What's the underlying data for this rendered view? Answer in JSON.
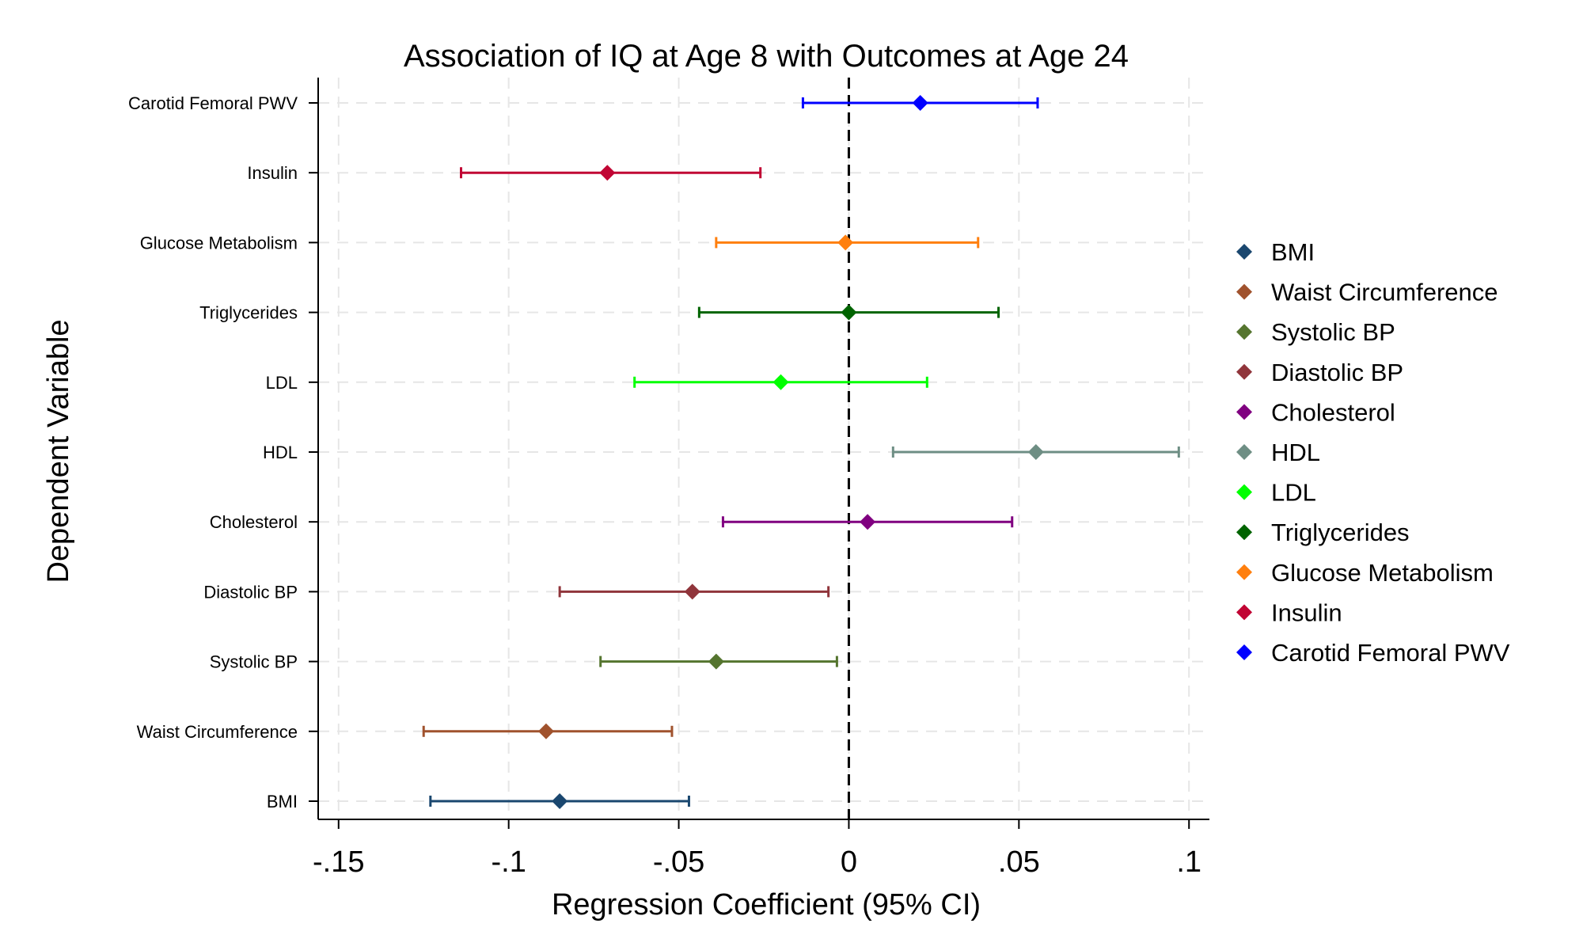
{
  "chart_data": {
    "type": "scatter",
    "title": "Association of IQ at Age 8 with Outcomes at Age 24",
    "xlabel": "Regression Coefficient (95% CI)",
    "ylabel": "Dependent Variable",
    "xlim": [
      -0.156,
      0.106
    ],
    "xticks": [
      -0.15,
      -0.1,
      -0.05,
      0,
      0.05,
      0.1
    ],
    "xtick_labels": [
      "-.15",
      "-.1",
      "-.05",
      "0",
      ".05",
      ".1"
    ],
    "reference_line": {
      "x": 0,
      "style": "dashed"
    },
    "grid": true,
    "legend_position": "right",
    "series": [
      {
        "name": "BMI",
        "estimate": -0.085,
        "ci_low": -0.123,
        "ci_high": -0.047,
        "color": "#1a476f"
      },
      {
        "name": "Waist Circumference",
        "estimate": -0.089,
        "ci_low": -0.125,
        "ci_high": -0.052,
        "color": "#a0522d"
      },
      {
        "name": "Systolic BP",
        "estimate": -0.039,
        "ci_low": -0.073,
        "ci_high": -0.0035,
        "color": "#55752f"
      },
      {
        "name": "Diastolic BP",
        "estimate": -0.046,
        "ci_low": -0.085,
        "ci_high": -0.006,
        "color": "#90353b"
      },
      {
        "name": "Cholesterol",
        "estimate": 0.0055,
        "ci_low": -0.037,
        "ci_high": 0.048,
        "color": "#800080"
      },
      {
        "name": "HDL",
        "estimate": 0.055,
        "ci_low": 0.013,
        "ci_high": 0.097,
        "color": "#6e8e84"
      },
      {
        "name": "LDL",
        "estimate": -0.02,
        "ci_low": -0.063,
        "ci_high": 0.023,
        "color": "#00ff00"
      },
      {
        "name": "Triglycerides",
        "estimate": 0.0,
        "ci_low": -0.044,
        "ci_high": 0.044,
        "color": "#006400"
      },
      {
        "name": "Glucose Metabolism",
        "estimate": -0.001,
        "ci_low": -0.039,
        "ci_high": 0.038,
        "color": "#ff7f0e"
      },
      {
        "name": "Insulin",
        "estimate": -0.071,
        "ci_low": -0.114,
        "ci_high": -0.026,
        "color": "#c10534"
      },
      {
        "name": "Carotid Femoral PWV",
        "estimate": 0.021,
        "ci_low": -0.0135,
        "ci_high": 0.0555,
        "color": "#0000ff"
      }
    ]
  }
}
